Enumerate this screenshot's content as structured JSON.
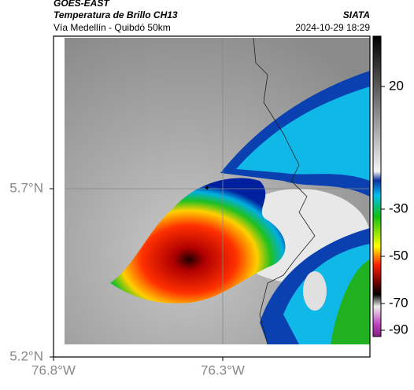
{
  "header": {
    "title": "GOES-EAST",
    "subtitle": "Temperatura de Brillo CH13",
    "route": "Vía Medellín - Quibdó 50km",
    "source": "SIATA",
    "datetime": "2024-10-29 18:29"
  },
  "map": {
    "x_ticks": [
      "76.8°W",
      "76.3°W"
    ],
    "y_ticks": [
      "5.7°N",
      "5.2°N"
    ]
  },
  "colorbar": {
    "ticks": [
      20,
      -30,
      -50,
      -70,
      -90
    ]
  }
}
